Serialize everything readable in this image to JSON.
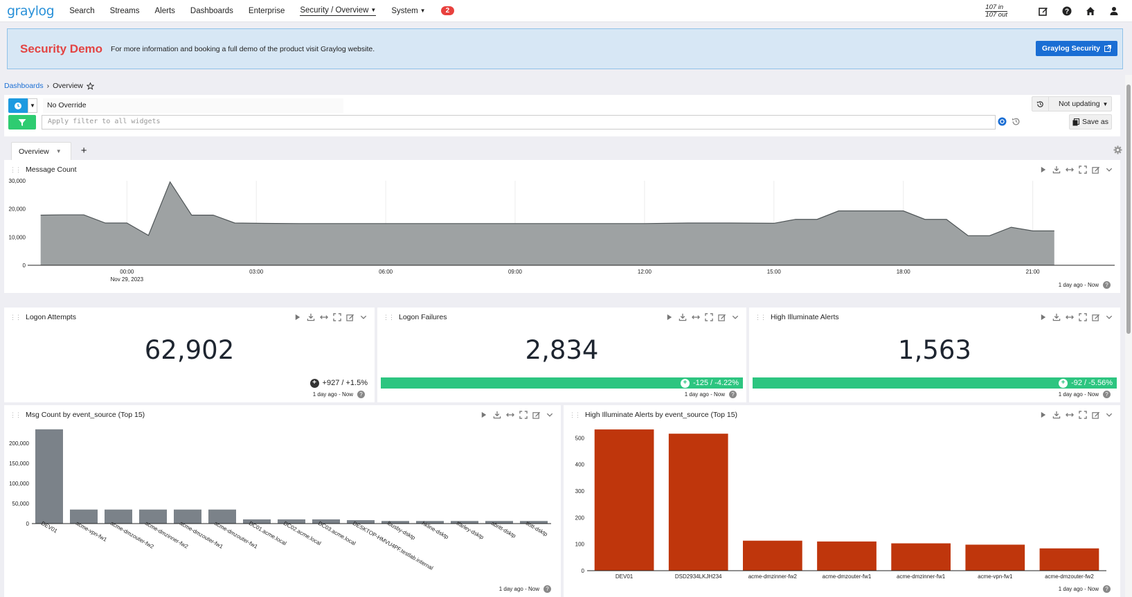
{
  "nav": {
    "logo": "graylog",
    "items": [
      "Search",
      "Streams",
      "Alerts",
      "Dashboards",
      "Enterprise"
    ],
    "security": "Security / Overview",
    "system": "System",
    "badge": "2",
    "throughput_in": "107 in",
    "throughput_out": "107 out"
  },
  "banner": {
    "title": "Security Demo",
    "text": "For more information and booking a full demo of the product visit Graylog website.",
    "button": "Graylog Security"
  },
  "breadcrumb": {
    "parent": "Dashboards",
    "current": "Overview"
  },
  "search": {
    "override": "No Override",
    "not_updating": "Not updating",
    "filter_placeholder": "Apply filter to all widgets",
    "save_as": "Save as"
  },
  "tabs": [
    {
      "label": "Overview"
    }
  ],
  "widgets": {
    "message_count": {
      "title": "Message Count",
      "timestamp": "1 day ago - Now"
    },
    "logon_attempts": {
      "title": "Logon Attempts",
      "value": "62,902",
      "delta": "+927 / +1.5%",
      "timestamp": "1 day ago - Now"
    },
    "logon_failures": {
      "title": "Logon Failures",
      "value": "2,834",
      "delta": "-125 / -4.22%",
      "timestamp": "1 day ago - Now"
    },
    "high_alerts": {
      "title": "High Illuminate Alerts",
      "value": "1,563",
      "delta": "-92 / -5.56%",
      "timestamp": "1 day ago - Now"
    },
    "msg_by_source": {
      "title": "Msg Count by event_source (Top 15)",
      "timestamp": "1 day ago - Now"
    },
    "alerts_by_source": {
      "title": "High Illuminate Alerts by event_source (Top 15)",
      "timestamp": "1 day ago - Now"
    }
  },
  "chart_data": [
    {
      "type": "area",
      "title": "Message Count",
      "x_ticks": [
        "00:00",
        "03:00",
        "06:00",
        "09:00",
        "12:00",
        "15:00",
        "18:00",
        "21:00"
      ],
      "x_sublabel": "Nov 29, 2023",
      "y_ticks": [
        "0",
        "10,000",
        "20,000",
        "30,000"
      ],
      "ylim": [
        0,
        30000
      ],
      "x_hours": [
        -2,
        -1.5,
        -1,
        -0.5,
        0,
        0.5,
        1,
        1.5,
        2,
        2.5,
        3,
        4,
        5,
        6,
        7,
        8,
        9,
        10,
        11,
        12,
        13,
        14,
        15,
        15.5,
        16,
        16.5,
        17,
        17.5,
        18,
        18.5,
        19,
        19.5,
        20,
        20.5,
        21,
        21.5
      ],
      "values": [
        17800,
        17900,
        17900,
        15000,
        15000,
        10600,
        29600,
        17800,
        17800,
        15000,
        14900,
        14800,
        14800,
        14800,
        14800,
        14800,
        14800,
        14800,
        14800,
        14800,
        15000,
        15000,
        14900,
        16300,
        16300,
        19300,
        19300,
        19300,
        19300,
        16300,
        16300,
        10500,
        10500,
        13500,
        12200,
        12200
      ]
    },
    {
      "type": "bar",
      "title": "Msg Count by event_source (Top 15)",
      "categories": [
        "DEV01",
        "acme-vpn-fw1",
        "acme-dmzouter-fw2",
        "acme-dmzinner-fw2",
        "acme-dmzouter-fw1",
        "acme-dmzouter-fw1",
        "DC01.acme.local",
        "DC02.acme.local",
        "DC03.acme.local",
        "DESKTOP-HMVU4PF.testlab.internal",
        "lbusby-dsktp",
        "hkline-dsktp",
        "tfarley-dsktp",
        "abritt-dsktp",
        "tlott-dsktp"
      ],
      "values": [
        235000,
        35000,
        35000,
        35000,
        35000,
        35000,
        10500,
        10500,
        10500,
        8500,
        6500,
        6500,
        6500,
        6500,
        6500
      ],
      "y_ticks": [
        "0",
        "50,000",
        "100,000",
        "150,000",
        "200,000"
      ],
      "ylim": [
        0,
        240000
      ],
      "color": "#7b8289"
    },
    {
      "type": "bar",
      "title": "High Illuminate Alerts by event_source (Top 15)",
      "categories": [
        "DEV01",
        "DSD2934LKJH234",
        "acme-dmzinner-fw2",
        "acme-dmzouter-fw1",
        "acme-dmzinner-fw1",
        "acme-vpn-fw1",
        "acme-dmzouter-fw2"
      ],
      "values": [
        532,
        516,
        113,
        110,
        103,
        98,
        84
      ],
      "y_ticks": [
        "0",
        "100",
        "200",
        "300",
        "400",
        "500"
      ],
      "ylim": [
        0,
        540
      ],
      "color": "#bf360c"
    }
  ]
}
